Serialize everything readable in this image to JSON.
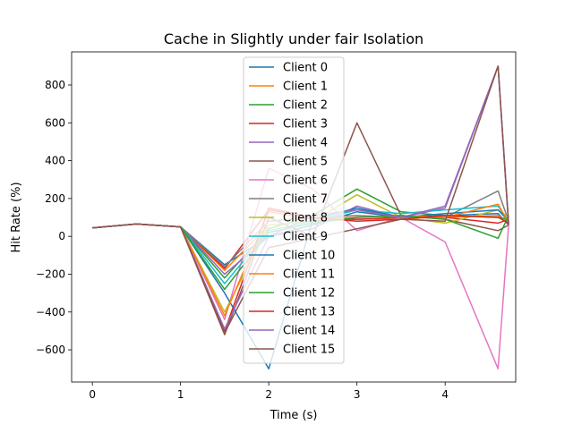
{
  "chart_data": {
    "type": "line",
    "title": "Cache in Slightly under fair Isolation",
    "xlabel": "Time (s)",
    "ylabel": "Hit Rate (%)",
    "xlim": [
      -0.235,
      4.8
    ],
    "ylim": [
      -770,
      975
    ],
    "xticks": [
      0,
      1,
      2,
      3,
      4
    ],
    "yticks": [
      -600,
      -400,
      -200,
      0,
      200,
      400,
      600,
      800
    ],
    "legend_position": "upper center",
    "x": [
      0,
      0.5,
      1,
      1.5,
      2,
      2.5,
      3,
      3.5,
      4,
      4.6,
      4.72
    ],
    "series": [
      {
        "name": "Client 0",
        "color": "#1f77b4",
        "values": [
          45,
          65,
          50,
          -150,
          0,
          60,
          130,
          100,
          110,
          120,
          60
        ]
      },
      {
        "name": "Client 1",
        "color": "#ff7f0e",
        "values": [
          45,
          65,
          50,
          -180,
          60,
          80,
          90,
          95,
          100,
          110,
          70
        ]
      },
      {
        "name": "Client 2",
        "color": "#2ca02c",
        "values": [
          45,
          65,
          50,
          -220,
          40,
          110,
          250,
          130,
          110,
          100,
          90
        ]
      },
      {
        "name": "Client 3",
        "color": "#d62728",
        "values": [
          45,
          65,
          50,
          -170,
          140,
          100,
          90,
          100,
          100,
          70,
          90
        ]
      },
      {
        "name": "Client 4",
        "color": "#9467bd",
        "values": [
          45,
          65,
          50,
          -200,
          0,
          40,
          160,
          100,
          150,
          900,
          70
        ]
      },
      {
        "name": "Client 5",
        "color": "#8c564b",
        "values": [
          45,
          65,
          50,
          -520,
          100,
          0,
          600,
          110,
          90,
          30,
          60
        ]
      },
      {
        "name": "Client 6",
        "color": "#e377c2",
        "values": [
          45,
          65,
          50,
          -440,
          360,
          250,
          30,
          100,
          -30,
          -700,
          60
        ]
      },
      {
        "name": "Client 7",
        "color": "#7f7f7f",
        "values": [
          45,
          65,
          50,
          -160,
          80,
          100,
          110,
          100,
          100,
          240,
          80
        ]
      },
      {
        "name": "Client 8",
        "color": "#bcbd22",
        "values": [
          45,
          65,
          50,
          -400,
          60,
          80,
          220,
          100,
          70,
          140,
          100
        ]
      },
      {
        "name": "Client 9",
        "color": "#17becf",
        "values": [
          45,
          65,
          50,
          -250,
          30,
          80,
          140,
          120,
          140,
          160,
          80
        ]
      },
      {
        "name": "Client 10",
        "color": "#1f77b4",
        "values": [
          45,
          65,
          50,
          -300,
          -700,
          90,
          150,
          100,
          120,
          140,
          80
        ]
      },
      {
        "name": "Client 11",
        "color": "#ff7f0e",
        "values": [
          45,
          65,
          50,
          -420,
          130,
          90,
          100,
          110,
          100,
          170,
          70
        ]
      },
      {
        "name": "Client 12",
        "color": "#2ca02c",
        "values": [
          45,
          65,
          50,
          -280,
          20,
          70,
          100,
          110,
          90,
          -10,
          110
        ]
      },
      {
        "name": "Client 13",
        "color": "#d62728",
        "values": [
          45,
          65,
          50,
          -500,
          150,
          100,
          80,
          90,
          110,
          100,
          70
        ]
      },
      {
        "name": "Client 14",
        "color": "#9467bd",
        "values": [
          45,
          65,
          50,
          -490,
          0,
          110,
          140,
          100,
          160,
          900,
          60
        ]
      },
      {
        "name": "Client 15",
        "color": "#8c564b",
        "values": [
          45,
          65,
          50,
          -510,
          -60,
          -10,
          40,
          90,
          80,
          900,
          60
        ]
      }
    ]
  }
}
